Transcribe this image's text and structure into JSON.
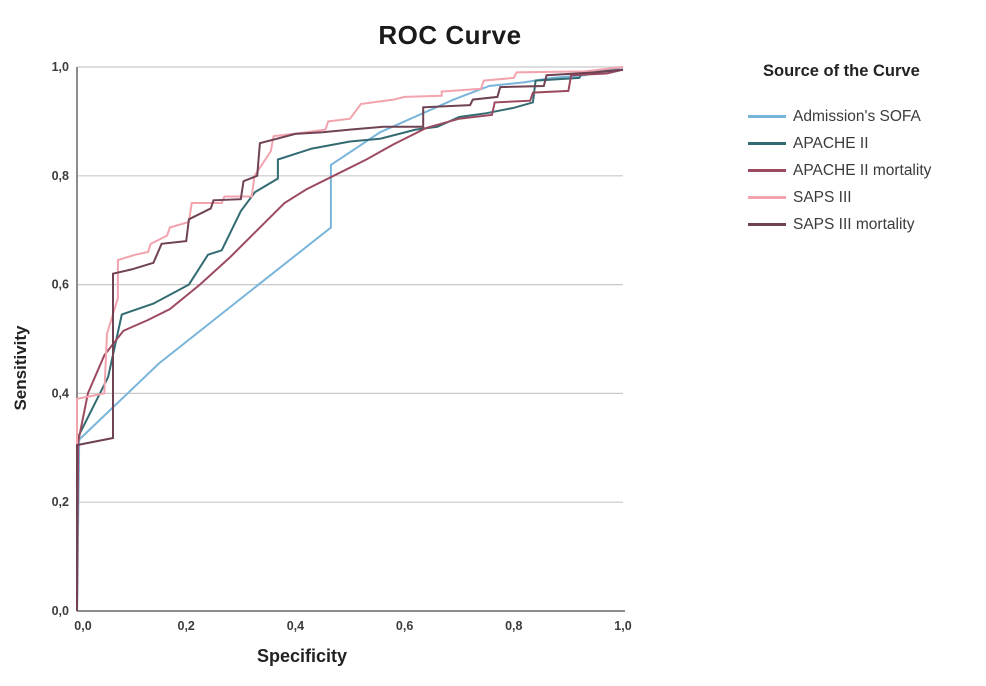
{
  "chart": {
    "title": "ROC Curve",
    "xlabel": "Specificity",
    "ylabel": "Sensitivity"
  },
  "legend": {
    "title": "Source of the Curve",
    "items": [
      {
        "label": "Admission's SOFA"
      },
      {
        "label": "APACHE II"
      },
      {
        "label": "APACHE II mortality"
      },
      {
        "label": "SAPS III"
      },
      {
        "label": "SAPS III mortality"
      }
    ]
  },
  "chart_data": {
    "type": "line",
    "title": "ROC Curve",
    "xlabel": "Specificity",
    "ylabel": "Sensitivity",
    "xlim": [
      0,
      1
    ],
    "ylim": [
      0,
      1
    ],
    "grid": "horizontal",
    "gridline_color": "#c9c9c9",
    "axis_color": "#8c8c8c",
    "tick_label_color": "#3c3c3c",
    "legend_position": "right",
    "legend_title": "Source of the Curve",
    "x_ticks": {
      "values": [
        0,
        0.2,
        0.4,
        0.6,
        0.8,
        1.0
      ],
      "labels": [
        "0,0",
        "0,2",
        "0,4",
        "0,6",
        "0,8",
        "1,0"
      ]
    },
    "y_ticks": {
      "values": [
        0,
        0.2,
        0.4,
        0.6,
        0.8,
        1.0
      ],
      "labels": [
        "0,0",
        "0,2",
        "0,4",
        "0,6",
        "0,8",
        "1,0"
      ]
    },
    "series": [
      {
        "name": "Admission's SOFA",
        "color": "#79b5da",
        "points": [
          [
            0,
            0
          ],
          [
            0.004,
            0.315
          ],
          [
            0.15,
            0.455
          ],
          [
            0.32,
            0.59
          ],
          [
            0.465,
            0.705
          ],
          [
            0.465,
            0.82
          ],
          [
            0.555,
            0.88
          ],
          [
            0.69,
            0.94
          ],
          [
            0.755,
            0.965
          ],
          [
            0.82,
            0.972
          ],
          [
            0.87,
            0.98
          ],
          [
            0.93,
            0.985
          ],
          [
            1,
            1
          ]
        ]
      },
      {
        "name": "APACHE II",
        "color": "#336b72",
        "points": [
          [
            0,
            0
          ],
          [
            0.002,
            0.32
          ],
          [
            0.057,
            0.43
          ],
          [
            0.082,
            0.545
          ],
          [
            0.14,
            0.565
          ],
          [
            0.205,
            0.6
          ],
          [
            0.24,
            0.655
          ],
          [
            0.265,
            0.663
          ],
          [
            0.3,
            0.735
          ],
          [
            0.326,
            0.77
          ],
          [
            0.368,
            0.795
          ],
          [
            0.368,
            0.83
          ],
          [
            0.43,
            0.85
          ],
          [
            0.5,
            0.863
          ],
          [
            0.555,
            0.868
          ],
          [
            0.62,
            0.885
          ],
          [
            0.66,
            0.89
          ],
          [
            0.7,
            0.908
          ],
          [
            0.75,
            0.915
          ],
          [
            0.8,
            0.925
          ],
          [
            0.835,
            0.935
          ],
          [
            0.84,
            0.975
          ],
          [
            0.92,
            0.98
          ],
          [
            0.925,
            0.99
          ],
          [
            1,
            0.995
          ]
        ]
      },
      {
        "name": "APACHE II mortality",
        "color": "#9c4a5f",
        "points": [
          [
            0,
            0
          ],
          [
            0.002,
            0.31
          ],
          [
            0.02,
            0.4
          ],
          [
            0.05,
            0.47
          ],
          [
            0.085,
            0.515
          ],
          [
            0.13,
            0.535
          ],
          [
            0.17,
            0.555
          ],
          [
            0.225,
            0.6
          ],
          [
            0.28,
            0.65
          ],
          [
            0.33,
            0.7
          ],
          [
            0.38,
            0.75
          ],
          [
            0.42,
            0.775
          ],
          [
            0.47,
            0.8
          ],
          [
            0.53,
            0.83
          ],
          [
            0.58,
            0.858
          ],
          [
            0.64,
            0.888
          ],
          [
            0.7,
            0.905
          ],
          [
            0.76,
            0.912
          ],
          [
            0.765,
            0.935
          ],
          [
            0.83,
            0.938
          ],
          [
            0.835,
            0.953
          ],
          [
            0.9,
            0.956
          ],
          [
            0.905,
            0.985
          ],
          [
            0.97,
            0.988
          ],
          [
            1,
            0.995
          ]
        ]
      },
      {
        "name": "SAPS III",
        "color": "#f2a3ad",
        "points": [
          [
            0,
            0
          ],
          [
            0,
            0.39
          ],
          [
            0.05,
            0.4
          ],
          [
            0.055,
            0.51
          ],
          [
            0.075,
            0.575
          ],
          [
            0.075,
            0.645
          ],
          [
            0.107,
            0.655
          ],
          [
            0.13,
            0.66
          ],
          [
            0.135,
            0.675
          ],
          [
            0.165,
            0.69
          ],
          [
            0.17,
            0.705
          ],
          [
            0.205,
            0.715
          ],
          [
            0.21,
            0.75
          ],
          [
            0.265,
            0.75
          ],
          [
            0.27,
            0.762
          ],
          [
            0.32,
            0.762
          ],
          [
            0.325,
            0.8
          ],
          [
            0.355,
            0.845
          ],
          [
            0.36,
            0.873
          ],
          [
            0.42,
            0.88
          ],
          [
            0.455,
            0.885
          ],
          [
            0.46,
            0.9
          ],
          [
            0.5,
            0.905
          ],
          [
            0.52,
            0.932
          ],
          [
            0.58,
            0.94
          ],
          [
            0.6,
            0.945
          ],
          [
            0.668,
            0.947
          ],
          [
            0.668,
            0.955
          ],
          [
            0.74,
            0.96
          ],
          [
            0.745,
            0.975
          ],
          [
            0.8,
            0.98
          ],
          [
            0.805,
            0.99
          ],
          [
            0.93,
            0.992
          ],
          [
            1,
            1
          ]
        ]
      },
      {
        "name": "SAPS III mortality",
        "color": "#6f4254",
        "points": [
          [
            0,
            0
          ],
          [
            0,
            0.305
          ],
          [
            0.066,
            0.318
          ],
          [
            0.066,
            0.62
          ],
          [
            0.1,
            0.628
          ],
          [
            0.14,
            0.64
          ],
          [
            0.155,
            0.675
          ],
          [
            0.2,
            0.68
          ],
          [
            0.205,
            0.72
          ],
          [
            0.245,
            0.74
          ],
          [
            0.25,
            0.755
          ],
          [
            0.3,
            0.757
          ],
          [
            0.305,
            0.79
          ],
          [
            0.33,
            0.8
          ],
          [
            0.335,
            0.86
          ],
          [
            0.4,
            0.877
          ],
          [
            0.45,
            0.88
          ],
          [
            0.5,
            0.885
          ],
          [
            0.56,
            0.89
          ],
          [
            0.634,
            0.89
          ],
          [
            0.634,
            0.926
          ],
          [
            0.72,
            0.93
          ],
          [
            0.725,
            0.94
          ],
          [
            0.77,
            0.945
          ],
          [
            0.775,
            0.963
          ],
          [
            0.855,
            0.965
          ],
          [
            0.86,
            0.985
          ],
          [
            0.95,
            0.99
          ],
          [
            1,
            0.995
          ]
        ]
      }
    ]
  }
}
